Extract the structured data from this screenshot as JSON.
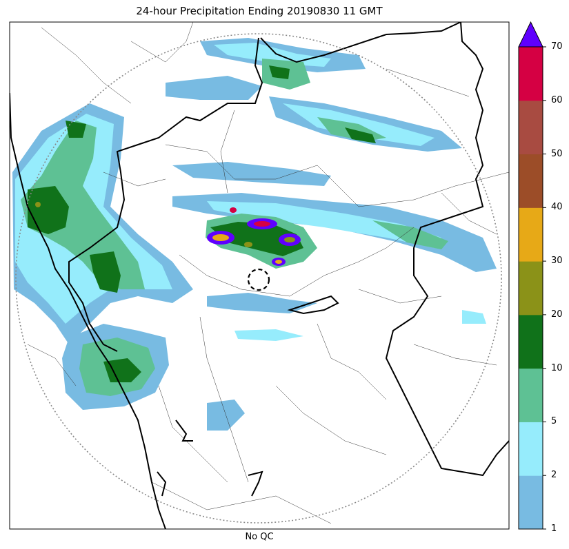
{
  "title": "24-hour Precipitation Ending 20190830 11 GMT",
  "xlabel": "No QC",
  "colorbar": {
    "levels": [
      1,
      2,
      5,
      10,
      20,
      30,
      40,
      50,
      60,
      70
    ],
    "labels": [
      "1",
      "2",
      "5",
      "10",
      "20",
      "30",
      "40",
      "50",
      "60",
      "70"
    ],
    "colors": [
      "#78bbe2",
      "#96ecfc",
      "#5ec194",
      "#10721a",
      "#8b9218",
      "#e7a917",
      "#9c4d28",
      "#a84b41",
      "#d50043"
    ],
    "over_color": "#5f00fe"
  }
}
